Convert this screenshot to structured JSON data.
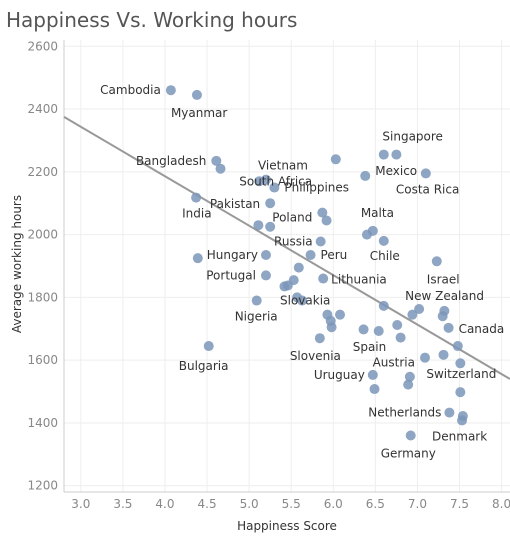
{
  "chart_data": {
    "type": "scatter",
    "title": "Happiness Vs. Working hours",
    "xlabel": "Happiness Score",
    "ylabel": "Average working hours",
    "xlim": [
      2.8,
      8.1
    ],
    "ylim": [
      1180,
      2620
    ],
    "x_ticks": [
      "3.0",
      "3.5",
      "4.0",
      "4.5",
      "5.0",
      "5.5",
      "6.0",
      "6.5",
      "7.0",
      "7.5",
      "8.0"
    ],
    "y_ticks": [
      "1200",
      "1400",
      "1600",
      "1800",
      "2000",
      "2200",
      "2400",
      "2600"
    ],
    "grid": true,
    "point_color": "#7a95b8",
    "trendline": {
      "x": [
        2.8,
        8.1
      ],
      "y": [
        2375,
        1540
      ],
      "color": "#999999"
    },
    "points": [
      {
        "x": 4.07,
        "y": 2460,
        "label": "Cambodia"
      },
      {
        "x": 4.38,
        "y": 2445,
        "label": "Myanmar"
      },
      {
        "x": 4.61,
        "y": 2235,
        "label": "Bangladesh"
      },
      {
        "x": 4.66,
        "y": 2210,
        "label": ""
      },
      {
        "x": 4.37,
        "y": 2118,
        "label": "India"
      },
      {
        "x": 4.39,
        "y": 1925,
        "label": ""
      },
      {
        "x": 4.52,
        "y": 1645,
        "label": "Bulgaria"
      },
      {
        "x": 5.12,
        "y": 2170,
        "label": "South Africa"
      },
      {
        "x": 5.2,
        "y": 2175,
        "label": "Vietnam"
      },
      {
        "x": 5.3,
        "y": 2150,
        "label": "Philippines"
      },
      {
        "x": 5.25,
        "y": 2100,
        "label": "Pakistan"
      },
      {
        "x": 5.11,
        "y": 2030,
        "label": ""
      },
      {
        "x": 5.25,
        "y": 2025,
        "label": ""
      },
      {
        "x": 5.2,
        "y": 1935,
        "label": "Hungary"
      },
      {
        "x": 5.2,
        "y": 1870,
        "label": "Portugal"
      },
      {
        "x": 5.09,
        "y": 1790,
        "label": "Nigeria"
      },
      {
        "x": 5.42,
        "y": 1835,
        "label": ""
      },
      {
        "x": 5.46,
        "y": 1838,
        "label": ""
      },
      {
        "x": 5.53,
        "y": 1855,
        "label": ""
      },
      {
        "x": 5.59,
        "y": 1895,
        "label": ""
      },
      {
        "x": 5.57,
        "y": 1800,
        "label": ""
      },
      {
        "x": 5.63,
        "y": 1790,
        "label": ""
      },
      {
        "x": 5.73,
        "y": 1935,
        "label": "Peru"
      },
      {
        "x": 5.85,
        "y": 1978,
        "label": "Russia"
      },
      {
        "x": 5.87,
        "y": 2070,
        "label": "Poland"
      },
      {
        "x": 5.92,
        "y": 2045,
        "label": ""
      },
      {
        "x": 5.88,
        "y": 1860,
        "label": "Lithuania"
      },
      {
        "x": 6.03,
        "y": 2240,
        "label": ""
      },
      {
        "x": 6.38,
        "y": 2187,
        "label": "Mexico"
      },
      {
        "x": 6.4,
        "y": 2000,
        "label": ""
      },
      {
        "x": 6.47,
        "y": 2012,
        "label": "Malta"
      },
      {
        "x": 6.6,
        "y": 1980,
        "label": "Chile"
      },
      {
        "x": 6.6,
        "y": 2255,
        "label": ""
      },
      {
        "x": 6.75,
        "y": 2255,
        "label": "Singapore"
      },
      {
        "x": 7.1,
        "y": 2195,
        "label": "Costa Rica"
      },
      {
        "x": 7.23,
        "y": 1915,
        "label": "Israel"
      },
      {
        "x": 6.08,
        "y": 1745,
        "label": "Slovakia"
      },
      {
        "x": 5.93,
        "y": 1745,
        "label": ""
      },
      {
        "x": 5.97,
        "y": 1725,
        "label": ""
      },
      {
        "x": 5.98,
        "y": 1705,
        "label": ""
      },
      {
        "x": 5.84,
        "y": 1670,
        "label": "Slovenia"
      },
      {
        "x": 6.36,
        "y": 1698,
        "label": ""
      },
      {
        "x": 6.54,
        "y": 1693,
        "label": "Spain"
      },
      {
        "x": 6.6,
        "y": 1773,
        "label": ""
      },
      {
        "x": 6.76,
        "y": 1712,
        "label": ""
      },
      {
        "x": 6.8,
        "y": 1672,
        "label": ""
      },
      {
        "x": 6.94,
        "y": 1745,
        "label": ""
      },
      {
        "x": 7.02,
        "y": 1763,
        "label": "New Zealand"
      },
      {
        "x": 7.3,
        "y": 1740,
        "label": ""
      },
      {
        "x": 7.32,
        "y": 1757,
        "label": ""
      },
      {
        "x": 7.37,
        "y": 1703,
        "label": "Canada"
      },
      {
        "x": 7.09,
        "y": 1608,
        "label": "Austria"
      },
      {
        "x": 7.31,
        "y": 1617,
        "label": ""
      },
      {
        "x": 7.48,
        "y": 1645,
        "label": ""
      },
      {
        "x": 7.51,
        "y": 1590,
        "label": ""
      },
      {
        "x": 6.47,
        "y": 1553,
        "label": "Uruguay"
      },
      {
        "x": 6.49,
        "y": 1508,
        "label": ""
      },
      {
        "x": 6.89,
        "y": 1522,
        "label": ""
      },
      {
        "x": 6.91,
        "y": 1547,
        "label": ""
      },
      {
        "x": 7.51,
        "y": 1498,
        "label": "Switzerland"
      },
      {
        "x": 7.38,
        "y": 1433,
        "label": "Netherlands"
      },
      {
        "x": 7.54,
        "y": 1422,
        "label": ""
      },
      {
        "x": 7.53,
        "y": 1408,
        "label": "Denmark"
      },
      {
        "x": 6.92,
        "y": 1360,
        "label": "Germany"
      }
    ]
  }
}
